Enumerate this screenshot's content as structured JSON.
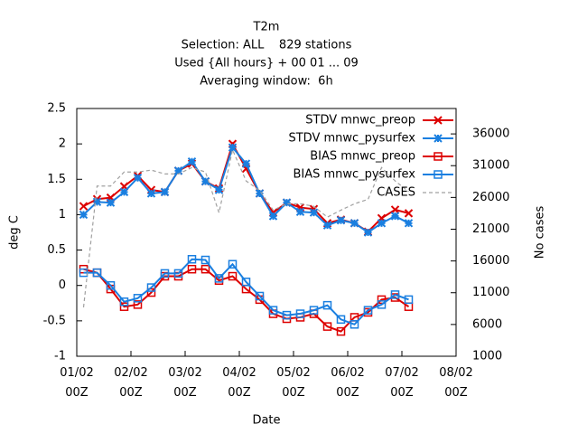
{
  "chart_data": {
    "type": "line",
    "title": [
      "T2m",
      "Selection: ALL    829 stations",
      "Used {All hours} + 00 01 ... 09",
      "Averaging window:  6h"
    ],
    "xlabel": "Date",
    "ylabel": "deg C",
    "y2label": "No cases",
    "x": [
      3,
      9,
      15,
      21,
      27,
      33,
      39,
      45,
      51,
      57,
      63,
      69,
      75,
      81,
      87,
      93,
      99,
      105,
      111,
      117,
      123,
      129,
      135,
      141,
      147
    ],
    "xlim": [
      0,
      168
    ],
    "xticks": [
      {
        "value": 0,
        "label": "01/02 00Z"
      },
      {
        "value": 24,
        "label": "02/02 00Z"
      },
      {
        "value": 48,
        "label": "03/02 00Z"
      },
      {
        "value": 72,
        "label": "04/02 00Z"
      },
      {
        "value": 96,
        "label": "05/02 00Z"
      },
      {
        "value": 120,
        "label": "06/02 00Z"
      },
      {
        "value": 144,
        "label": "07/02 00Z"
      },
      {
        "value": 168,
        "label": "08/02 00Z"
      }
    ],
    "ylim": [
      -1,
      2.5
    ],
    "yticks": [
      -1,
      -0.5,
      0,
      0.5,
      1,
      1.5,
      2,
      2.5
    ],
    "y2lim": [
      1000,
      40000
    ],
    "y2ticks": [
      1000,
      6000,
      11000,
      16000,
      21000,
      26000,
      31000,
      36000
    ],
    "grid": false,
    "legend": "upper right",
    "series": [
      {
        "name": "STDV mnwc_preop",
        "color": "#dd0000",
        "marker": "cross",
        "dashed": false,
        "values": [
          1.12,
          1.22,
          1.24,
          1.4,
          1.55,
          1.35,
          1.32,
          1.62,
          1.72,
          1.47,
          1.37,
          2.0,
          1.65,
          1.3,
          1.03,
          1.17,
          1.1,
          1.08,
          0.88,
          0.93,
          0.88,
          0.76,
          0.95,
          1.07,
          1.02
        ]
      },
      {
        "name": "STDV mnwc_pysurfex",
        "color": "#1a7fe0",
        "marker": "star",
        "dashed": false,
        "values": [
          1.0,
          1.18,
          1.17,
          1.32,
          1.52,
          1.3,
          1.32,
          1.62,
          1.75,
          1.47,
          1.35,
          1.95,
          1.72,
          1.3,
          0.98,
          1.17,
          1.04,
          1.03,
          0.85,
          0.92,
          0.88,
          0.75,
          0.88,
          0.98,
          0.88
        ]
      },
      {
        "name": "BIAS mnwc_preop",
        "color": "#dd0000",
        "marker": "square",
        "dashed": false,
        "values": [
          0.23,
          0.18,
          -0.05,
          -0.3,
          -0.27,
          -0.1,
          0.13,
          0.13,
          0.23,
          0.23,
          0.07,
          0.13,
          -0.05,
          -0.2,
          -0.4,
          -0.47,
          -0.45,
          -0.4,
          -0.58,
          -0.65,
          -0.45,
          -0.38,
          -0.2,
          -0.17,
          -0.3
        ]
      },
      {
        "name": "BIAS mnwc_pysurfex",
        "color": "#1a7fe0",
        "marker": "square",
        "dashed": false,
        "values": [
          0.18,
          0.18,
          0.0,
          -0.23,
          -0.18,
          -0.03,
          0.17,
          0.17,
          0.37,
          0.36,
          0.1,
          0.3,
          0.05,
          -0.15,
          -0.35,
          -0.42,
          -0.4,
          -0.35,
          -0.28,
          -0.48,
          -0.55,
          -0.35,
          -0.27,
          -0.13,
          -0.2
        ]
      },
      {
        "name": "CASES",
        "color": "#a0a0a0",
        "marker": "none",
        "dashed": true,
        "axis": "y2",
        "values": [
          8700,
          27800,
          27800,
          30000,
          30000,
          30300,
          29700,
          29700,
          30700,
          30000,
          23600,
          33500,
          28600,
          27100,
          24000,
          25000,
          25000,
          24600,
          22900,
          24000,
          25000,
          25700,
          30700,
          28600,
          26900
        ]
      }
    ]
  }
}
